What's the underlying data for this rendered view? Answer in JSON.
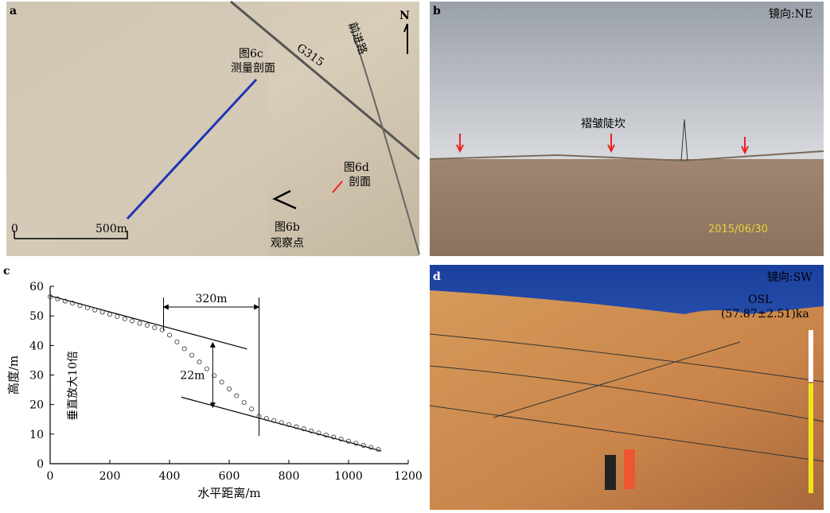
{
  "panels": {
    "a": {
      "label": "a",
      "road1": "G315",
      "road2": "前进路",
      "north": "N",
      "profile_c": "图6c",
      "profile_c2": "测量剖面",
      "profile_d": "图6d",
      "profile_d2": "剖面",
      "obs": "图6b",
      "obs2": "观察点",
      "scale0": "0",
      "scale1": "500m"
    },
    "b": {
      "label": "b",
      "dir": "镜向:NE",
      "feature": "褶皱陡坎",
      "date": "2015/06/30"
    },
    "d": {
      "label": "d",
      "dir": "镜向:SW",
      "osl": "OSL",
      "age": "(57.87±2.51)ka"
    }
  },
  "chart_data": {
    "type": "scatter",
    "panel_label": "c",
    "x_label": "水平距离/m",
    "y_label": "高度/m",
    "note": "垂直放大10倍",
    "x": [
      0,
      25,
      50,
      75,
      100,
      125,
      150,
      175,
      200,
      225,
      250,
      275,
      300,
      325,
      350,
      375,
      400,
      425,
      450,
      475,
      500,
      525,
      550,
      575,
      600,
      625,
      650,
      675,
      700,
      725,
      750,
      775,
      800,
      825,
      850,
      875,
      900,
      925,
      950,
      975,
      1000,
      1025,
      1050,
      1075,
      1100
    ],
    "values": [
      56.5,
      55.8,
      55.0,
      54.3,
      53.5,
      52.8,
      52.0,
      51.3,
      50.5,
      49.8,
      49.0,
      48.3,
      47.5,
      46.8,
      46.0,
      45.3,
      43.5,
      41.2,
      38.9,
      36.7,
      34.4,
      32.1,
      29.8,
      27.6,
      25.3,
      23.0,
      20.7,
      18.5,
      16.0,
      15.3,
      14.6,
      13.9,
      13.2,
      12.5,
      11.8,
      11.1,
      10.4,
      9.7,
      9.0,
      8.3,
      7.6,
      6.9,
      6.2,
      5.5,
      4.8
    ],
    "color": "#333333",
    "xlim": [
      0,
      1200
    ],
    "ylim": [
      0,
      60
    ],
    "xticks": [
      0,
      200,
      400,
      600,
      800,
      1000,
      1200
    ],
    "yticks": [
      0,
      10,
      20,
      30,
      40,
      50,
      60
    ],
    "trend_lines": [
      {
        "x": [
          0,
          660
        ],
        "y": [
          56.8,
          38.8
        ]
      },
      {
        "x": [
          440,
          1110
        ],
        "y": [
          22.5,
          4.3
        ]
      }
    ],
    "annotations": [
      {
        "text": "320m",
        "x": [
          380,
          700
        ],
        "y": 53
      },
      {
        "text": "22m",
        "x": 545,
        "y": [
          41,
          19
        ]
      }
    ]
  }
}
